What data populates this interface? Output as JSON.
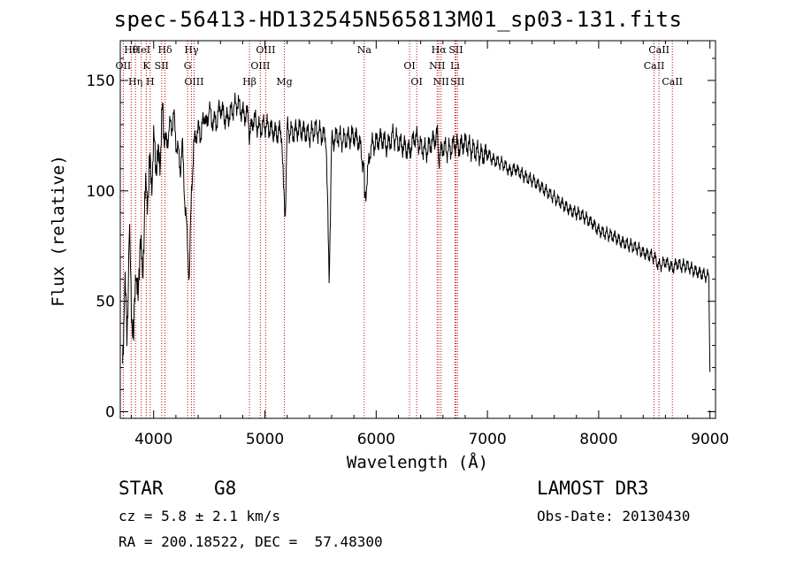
{
  "chart_data": {
    "type": "line",
    "title": "spec-56413-HD132545N565813M01_sp03-131.fits",
    "xlabel": "Wavelength (Å)",
    "ylabel": "Flux (relative)",
    "xlim": [
      3700,
      9050
    ],
    "ylim": [
      -3,
      168
    ],
    "x_ticks": [
      4000,
      5000,
      6000,
      7000,
      8000,
      9000
    ],
    "x_tick_labels": [
      "4000",
      "5000",
      "6000",
      "7000",
      "8000",
      "9000"
    ],
    "y_ticks": [
      0,
      50,
      100,
      150
    ],
    "y_tick_labels": [
      "0",
      "50",
      "100",
      "150"
    ],
    "series": [
      {
        "name": "spectrum",
        "x": [
          3720,
          3740,
          3760,
          3780,
          3800,
          3820,
          3840,
          3860,
          3880,
          3900,
          3920,
          3940,
          3960,
          3980,
          4000,
          4020,
          4040,
          4060,
          4080,
          4100,
          4120,
          4140,
          4160,
          4180,
          4200,
          4220,
          4240,
          4260,
          4280,
          4300,
          4320,
          4340,
          4360,
          4380,
          4400,
          4420,
          4440,
          4460,
          4480,
          4500,
          4520,
          4540,
          4560,
          4580,
          4600,
          4650,
          4700,
          4750,
          4800,
          4850,
          4861,
          4900,
          4950,
          5000,
          5050,
          5100,
          5150,
          5167,
          5183,
          5200,
          5250,
          5300,
          5350,
          5400,
          5450,
          5500,
          5550,
          5577,
          5600,
          5650,
          5700,
          5750,
          5800,
          5850,
          5890,
          5896,
          5950,
          6000,
          6050,
          6100,
          6150,
          6200,
          6250,
          6300,
          6350,
          6400,
          6450,
          6500,
          6550,
          6563,
          6600,
          6650,
          6700,
          6750,
          6800,
          6850,
          6900,
          6950,
          7000,
          7050,
          7100,
          7150,
          7200,
          7250,
          7300,
          7350,
          7400,
          7450,
          7500,
          7550,
          7600,
          7650,
          7700,
          7750,
          7800,
          7850,
          7900,
          7950,
          8000,
          8050,
          8100,
          8150,
          8200,
          8250,
          8300,
          8350,
          8400,
          8450,
          8498,
          8542,
          8600,
          8662,
          8700,
          8750,
          8800,
          8850,
          8900,
          8950,
          8990,
          9000
        ],
        "values": [
          20,
          60,
          35,
          80,
          50,
          30,
          70,
          45,
          85,
          55,
          100,
          95,
          110,
          105,
          120,
          115,
          112,
          118,
          135,
          125,
          120,
          130,
          128,
          135,
          122,
          118,
          110,
          120,
          95,
          80,
          60,
          100,
          120,
          125,
          128,
          125,
          130,
          135,
          128,
          140,
          130,
          133,
          130,
          135,
          138,
          132,
          136,
          140,
          135,
          134,
          125,
          133,
          128,
          130,
          128,
          126,
          127,
          100,
          90,
          128,
          126,
          128,
          127,
          125,
          128,
          126,
          124,
          60,
          122,
          125,
          123,
          124,
          125,
          122,
          110,
          95,
          120,
          122,
          124,
          120,
          125,
          122,
          120,
          118,
          125,
          120,
          118,
          122,
          125,
          115,
          120,
          118,
          121,
          120,
          122,
          119,
          118,
          116,
          117,
          114,
          113,
          112,
          109,
          110,
          108,
          106,
          105,
          103,
          101,
          99,
          97,
          95,
          93,
          91,
          90,
          89,
          87,
          85,
          82,
          81,
          80,
          79,
          77,
          76,
          75,
          74,
          72,
          71,
          70,
          66,
          68,
          65,
          67,
          66,
          66,
          64,
          63,
          62,
          61,
          18
        ]
      }
    ],
    "lines": [
      {
        "label": "Hθ",
        "wavelength": 3798
      },
      {
        "label": "OII",
        "wavelength": 3727
      },
      {
        "label": "Hη",
        "wavelength": 3836
      },
      {
        "label": "HeI",
        "wavelength": 3889
      },
      {
        "label": "K",
        "wavelength": 3934
      },
      {
        "label": "H",
        "wavelength": 3969
      },
      {
        "label": "Hδ",
        "wavelength": 4102
      },
      {
        "label": "SII",
        "wavelength": 4072
      },
      {
        "label": "OIII",
        "wavelength": 4363
      },
      {
        "label": "Hγ",
        "wavelength": 4340
      },
      {
        "label": "G",
        "wavelength": 4305
      },
      {
        "label": "Hβ",
        "wavelength": 4861
      },
      {
        "label": "OIII",
        "wavelength": 5007
      },
      {
        "label": "OIII",
        "wavelength": 4959
      },
      {
        "label": "Mg",
        "wavelength": 5175
      },
      {
        "label": "Na",
        "wavelength": 5893
      },
      {
        "label": "OI",
        "wavelength": 6300
      },
      {
        "label": "OI",
        "wavelength": 6364
      },
      {
        "label": "Hα",
        "wavelength": 6563
      },
      {
        "label": "NII",
        "wavelength": 6548
      },
      {
        "label": "NII",
        "wavelength": 6583
      },
      {
        "label": "SII",
        "wavelength": 6717
      },
      {
        "label": "Li",
        "wavelength": 6708
      },
      {
        "label": "SII",
        "wavelength": 6731
      },
      {
        "label": "CaII",
        "wavelength": 8542
      },
      {
        "label": "CaII",
        "wavelength": 8498
      },
      {
        "label": "CaII",
        "wavelength": 8662
      }
    ],
    "line_color": "#000000",
    "marker_color": "#cc0000"
  },
  "info": {
    "object_class": "STAR",
    "subclass": "G8",
    "survey": "LAMOST DR3",
    "redshift": "cz = 5.8 ± 2.1 km/s",
    "obs_date": "Obs-Date: 20130430",
    "coords": "RA = 200.18522, DEC =  57.48300"
  }
}
